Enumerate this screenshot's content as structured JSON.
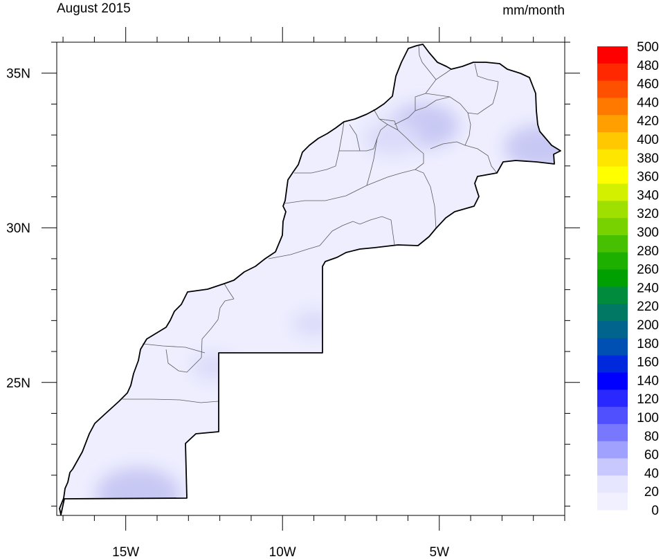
{
  "title_left": "August 2015",
  "title_right": "mm/month",
  "axes": {
    "lon_range": [
      -17.2,
      -1.0
    ],
    "lat_range": [
      20.7,
      36.0
    ],
    "x_major_labels": [
      {
        "lon": -15,
        "label": "15W"
      },
      {
        "lon": -10,
        "label": "10W"
      },
      {
        "lon": -5,
        "label": "5W"
      }
    ],
    "y_major_labels": [
      {
        "lat": 25,
        "label": "25N"
      },
      {
        "lat": 30,
        "label": "30N"
      },
      {
        "lat": 35,
        "label": "35N"
      }
    ]
  },
  "colorbar": {
    "unit": "mm/month",
    "labels": [
      "500",
      "480",
      "460",
      "440",
      "420",
      "400",
      "380",
      "360",
      "340",
      "320",
      "300",
      "280",
      "260",
      "240",
      "220",
      "200",
      "180",
      "160",
      "140",
      "120",
      "100",
      "80",
      "60",
      "40",
      "20",
      "0"
    ],
    "colors": [
      "#ff0000",
      "#ff2800",
      "#ff5000",
      "#ff7800",
      "#ffa000",
      "#ffc800",
      "#ffe600",
      "#ffff00",
      "#d2f000",
      "#a0e000",
      "#78d200",
      "#46c000",
      "#1eb000",
      "#00a000",
      "#008c3c",
      "#007864",
      "#00648c",
      "#0050b4",
      "#0028dc",
      "#0000ff",
      "#2828ff",
      "#5050ff",
      "#7878ff",
      "#a0a0ff",
      "#c8c8ff",
      "#e6e6ff",
      "#f0f0ff"
    ]
  },
  "precip_hotspots": [
    {
      "lon": -14.6,
      "lat": 21.4,
      "mm": 40
    },
    {
      "lon": -5.5,
      "lat": 33.3,
      "mm": 30
    },
    {
      "lon": -1.8,
      "lat": 32.6,
      "mm": 30
    },
    {
      "lon": -6.5,
      "lat": 32.9,
      "mm": 20
    },
    {
      "lon": -9.0,
      "lat": 26.9,
      "mm": 10
    },
    {
      "lon": -12.2,
      "lat": 25.5,
      "mm": 10
    }
  ]
}
